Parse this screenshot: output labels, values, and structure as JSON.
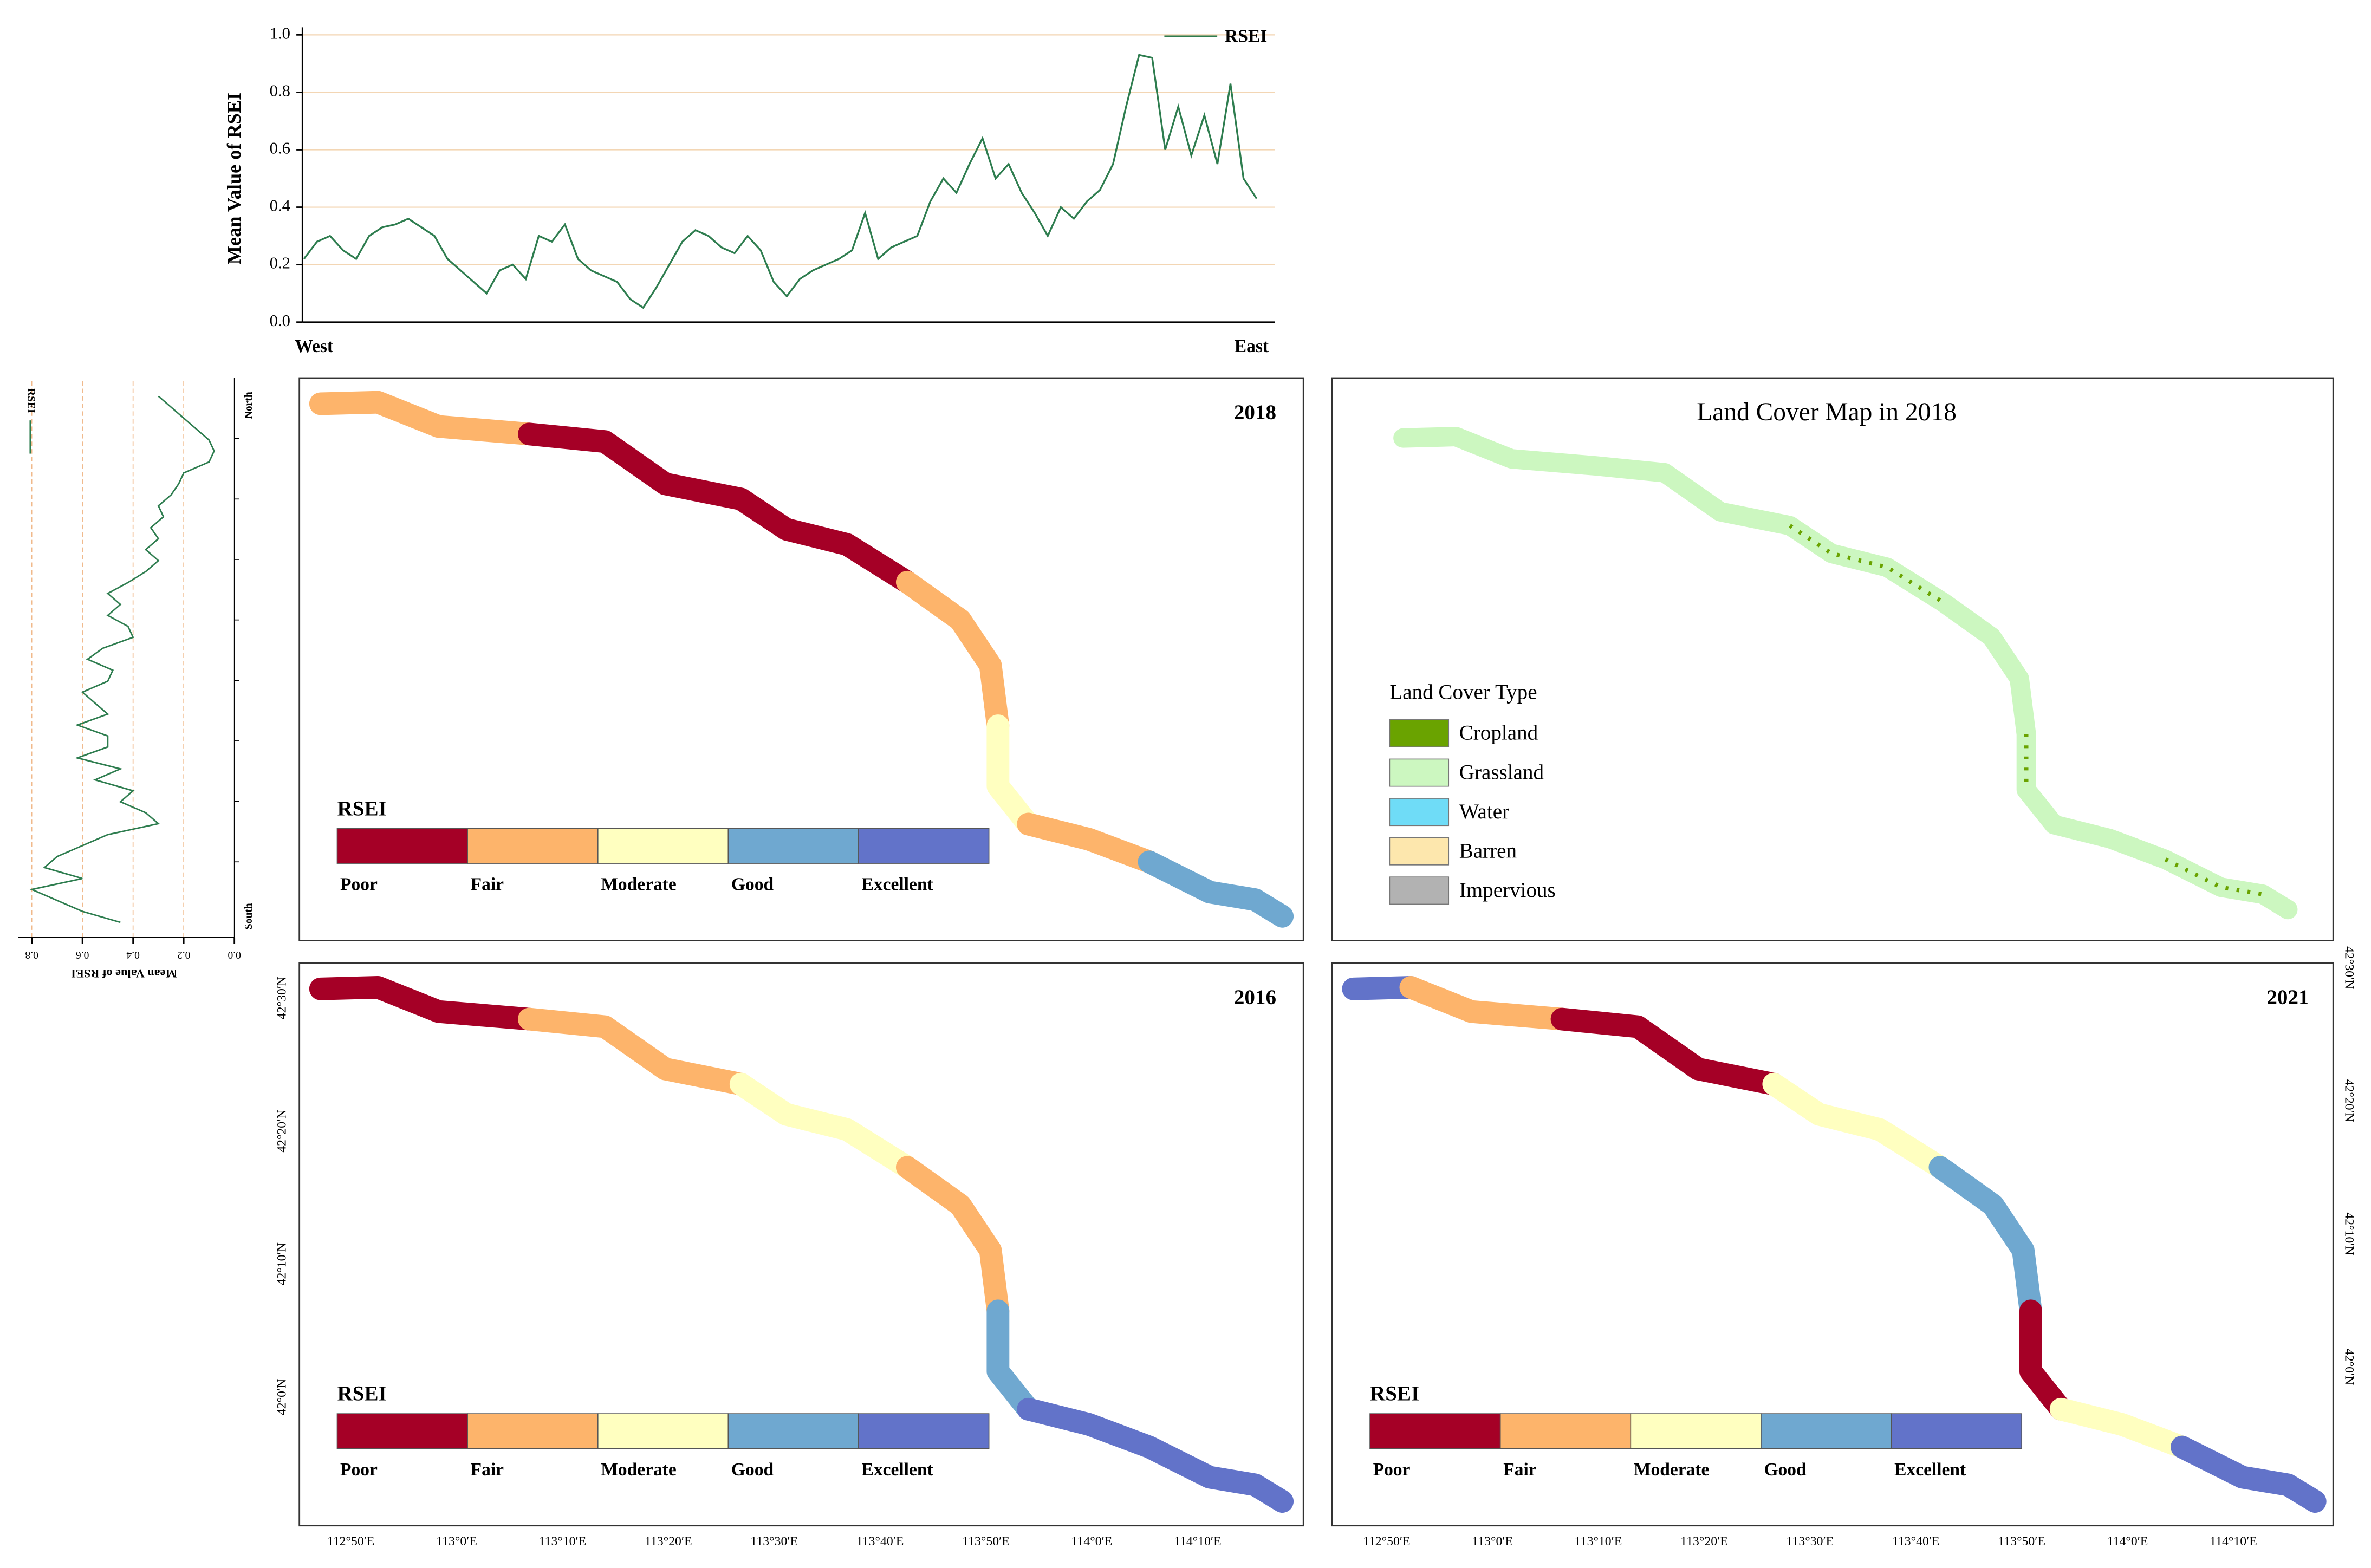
{
  "chart_data": [
    {
      "type": "line",
      "y_label": "Mean Value of RSEI",
      "categories": [
        "West",
        null,
        null,
        null,
        null,
        null,
        null,
        null,
        null,
        null,
        null,
        null,
        null,
        null,
        null,
        null,
        null,
        null,
        null,
        null,
        null,
        null,
        null,
        null,
        null,
        null,
        null,
        null,
        null,
        null,
        null,
        null,
        null,
        null,
        null,
        null,
        null,
        null,
        null,
        null,
        null,
        null,
        null,
        null,
        null,
        null,
        null,
        null,
        null,
        null,
        null,
        null,
        null,
        null,
        null,
        null,
        null,
        null,
        null,
        null,
        null,
        null,
        null,
        null,
        null,
        null,
        null,
        null,
        null,
        null,
        null,
        null,
        null,
        "East"
      ],
      "series": [
        {
          "name": "RSEI",
          "color": "#2e7d4f",
          "values": [
            0.22,
            0.28,
            0.3,
            0.25,
            0.22,
            0.3,
            0.33,
            0.34,
            0.36,
            0.33,
            0.3,
            0.22,
            0.18,
            0.14,
            0.1,
            0.18,
            0.2,
            0.15,
            0.3,
            0.28,
            0.34,
            0.22,
            0.18,
            0.16,
            0.14,
            0.08,
            0.05,
            0.12,
            0.2,
            0.28,
            0.32,
            0.3,
            0.26,
            0.24,
            0.3,
            0.25,
            0.14,
            0.09,
            0.15,
            0.18,
            0.2,
            0.22,
            0.25,
            0.38,
            0.22,
            0.26,
            0.28,
            0.3,
            0.42,
            0.5,
            0.45,
            0.55,
            0.64,
            0.5,
            0.55,
            0.45,
            0.38,
            0.3,
            0.4,
            0.36,
            0.42,
            0.46,
            0.55,
            0.75,
            0.93,
            0.92,
            0.6,
            0.75,
            0.58,
            0.72,
            0.55,
            0.83,
            0.5,
            0.43
          ]
        }
      ],
      "ylim": [
        0,
        1
      ],
      "yticks": [
        {
          "value": 0,
          "label": "0.0"
        },
        {
          "value": 0.2,
          "label": "0.2"
        },
        {
          "value": 0.4,
          "label": "0.4"
        },
        {
          "value": 0.6,
          "label": "0.6"
        },
        {
          "value": 0.8,
          "label": "0.8"
        },
        {
          "value": 1,
          "label": "1.0"
        }
      ],
      "grid": true
    },
    {
      "type": "line",
      "orientation": "vertical",
      "y_label": "Mean Value of RSEI",
      "categories": [
        "North",
        null,
        null,
        null,
        null,
        null,
        null,
        null,
        null,
        null,
        null,
        null,
        null,
        null,
        null,
        null,
        null,
        null,
        null,
        null,
        null,
        null,
        null,
        null,
        null,
        null,
        null,
        null,
        null,
        null,
        null,
        null,
        null,
        null,
        null,
        null,
        null,
        null,
        null,
        null,
        null,
        null,
        null,
        null,
        null,
        null,
        null,
        null,
        "South"
      ],
      "series": [
        {
          "name": "RSEI",
          "color": "#2e7d4f",
          "values": [
            0.3,
            0.25,
            0.2,
            0.15,
            0.1,
            0.08,
            0.1,
            0.2,
            0.22,
            0.25,
            0.3,
            0.28,
            0.33,
            0.3,
            0.35,
            0.3,
            0.35,
            0.42,
            0.5,
            0.45,
            0.5,
            0.42,
            0.4,
            0.52,
            0.58,
            0.48,
            0.5,
            0.6,
            0.55,
            0.5,
            0.62,
            0.5,
            0.5,
            0.62,
            0.45,
            0.55,
            0.4,
            0.45,
            0.35,
            0.3,
            0.5,
            0.6,
            0.7,
            0.75,
            0.6,
            0.8,
            0.7,
            0.6,
            0.45
          ]
        }
      ],
      "xlim": [
        0,
        0.8
      ],
      "xticks": [
        {
          "value": 0,
          "label": "0.0"
        },
        0.2,
        0.4,
        0.6,
        0.8
      ],
      "grid": true
    }
  ],
  "maps": {
    "panels": [
      {
        "label": "2018"
      },
      {
        "label": "Land Cover Map in 2018"
      },
      {
        "label": "2016"
      },
      {
        "label": "2021"
      }
    ],
    "rsei_legend": {
      "title": "RSEI",
      "classes": [
        {
          "label": "Poor",
          "color": "#a50026"
        },
        {
          "label": "Fair",
          "color": "#fdb46b"
        },
        {
          "label": "Moderate",
          "color": "#ffffc0"
        },
        {
          "label": "Good",
          "color": "#6fa8d0"
        },
        {
          "label": "Excellent",
          "color": "#6273c9"
        }
      ]
    },
    "land_cover_legend": {
      "title": "Land Cover Type",
      "classes": [
        {
          "label": "Cropland",
          "color": "#6aa300"
        },
        {
          "label": "Grassland",
          "color": "#ccf7c0"
        },
        {
          "label": "Water",
          "color": "#6fdcf7"
        },
        {
          "label": "Barren",
          "color": "#fde7ad"
        },
        {
          "label": "Impervious",
          "color": "#b2b2b2"
        }
      ]
    },
    "lon_ticks": [
      "112°50′E",
      "113°0′E",
      "113°10′E",
      "113°20′E",
      "113°30′E",
      "113°40′E",
      "113°50′E",
      "114°0′E",
      "114°10′E"
    ],
    "lat_ticks": [
      "42°30′N",
      "42°20′N",
      "42°10′N",
      "42°0′N"
    ]
  }
}
